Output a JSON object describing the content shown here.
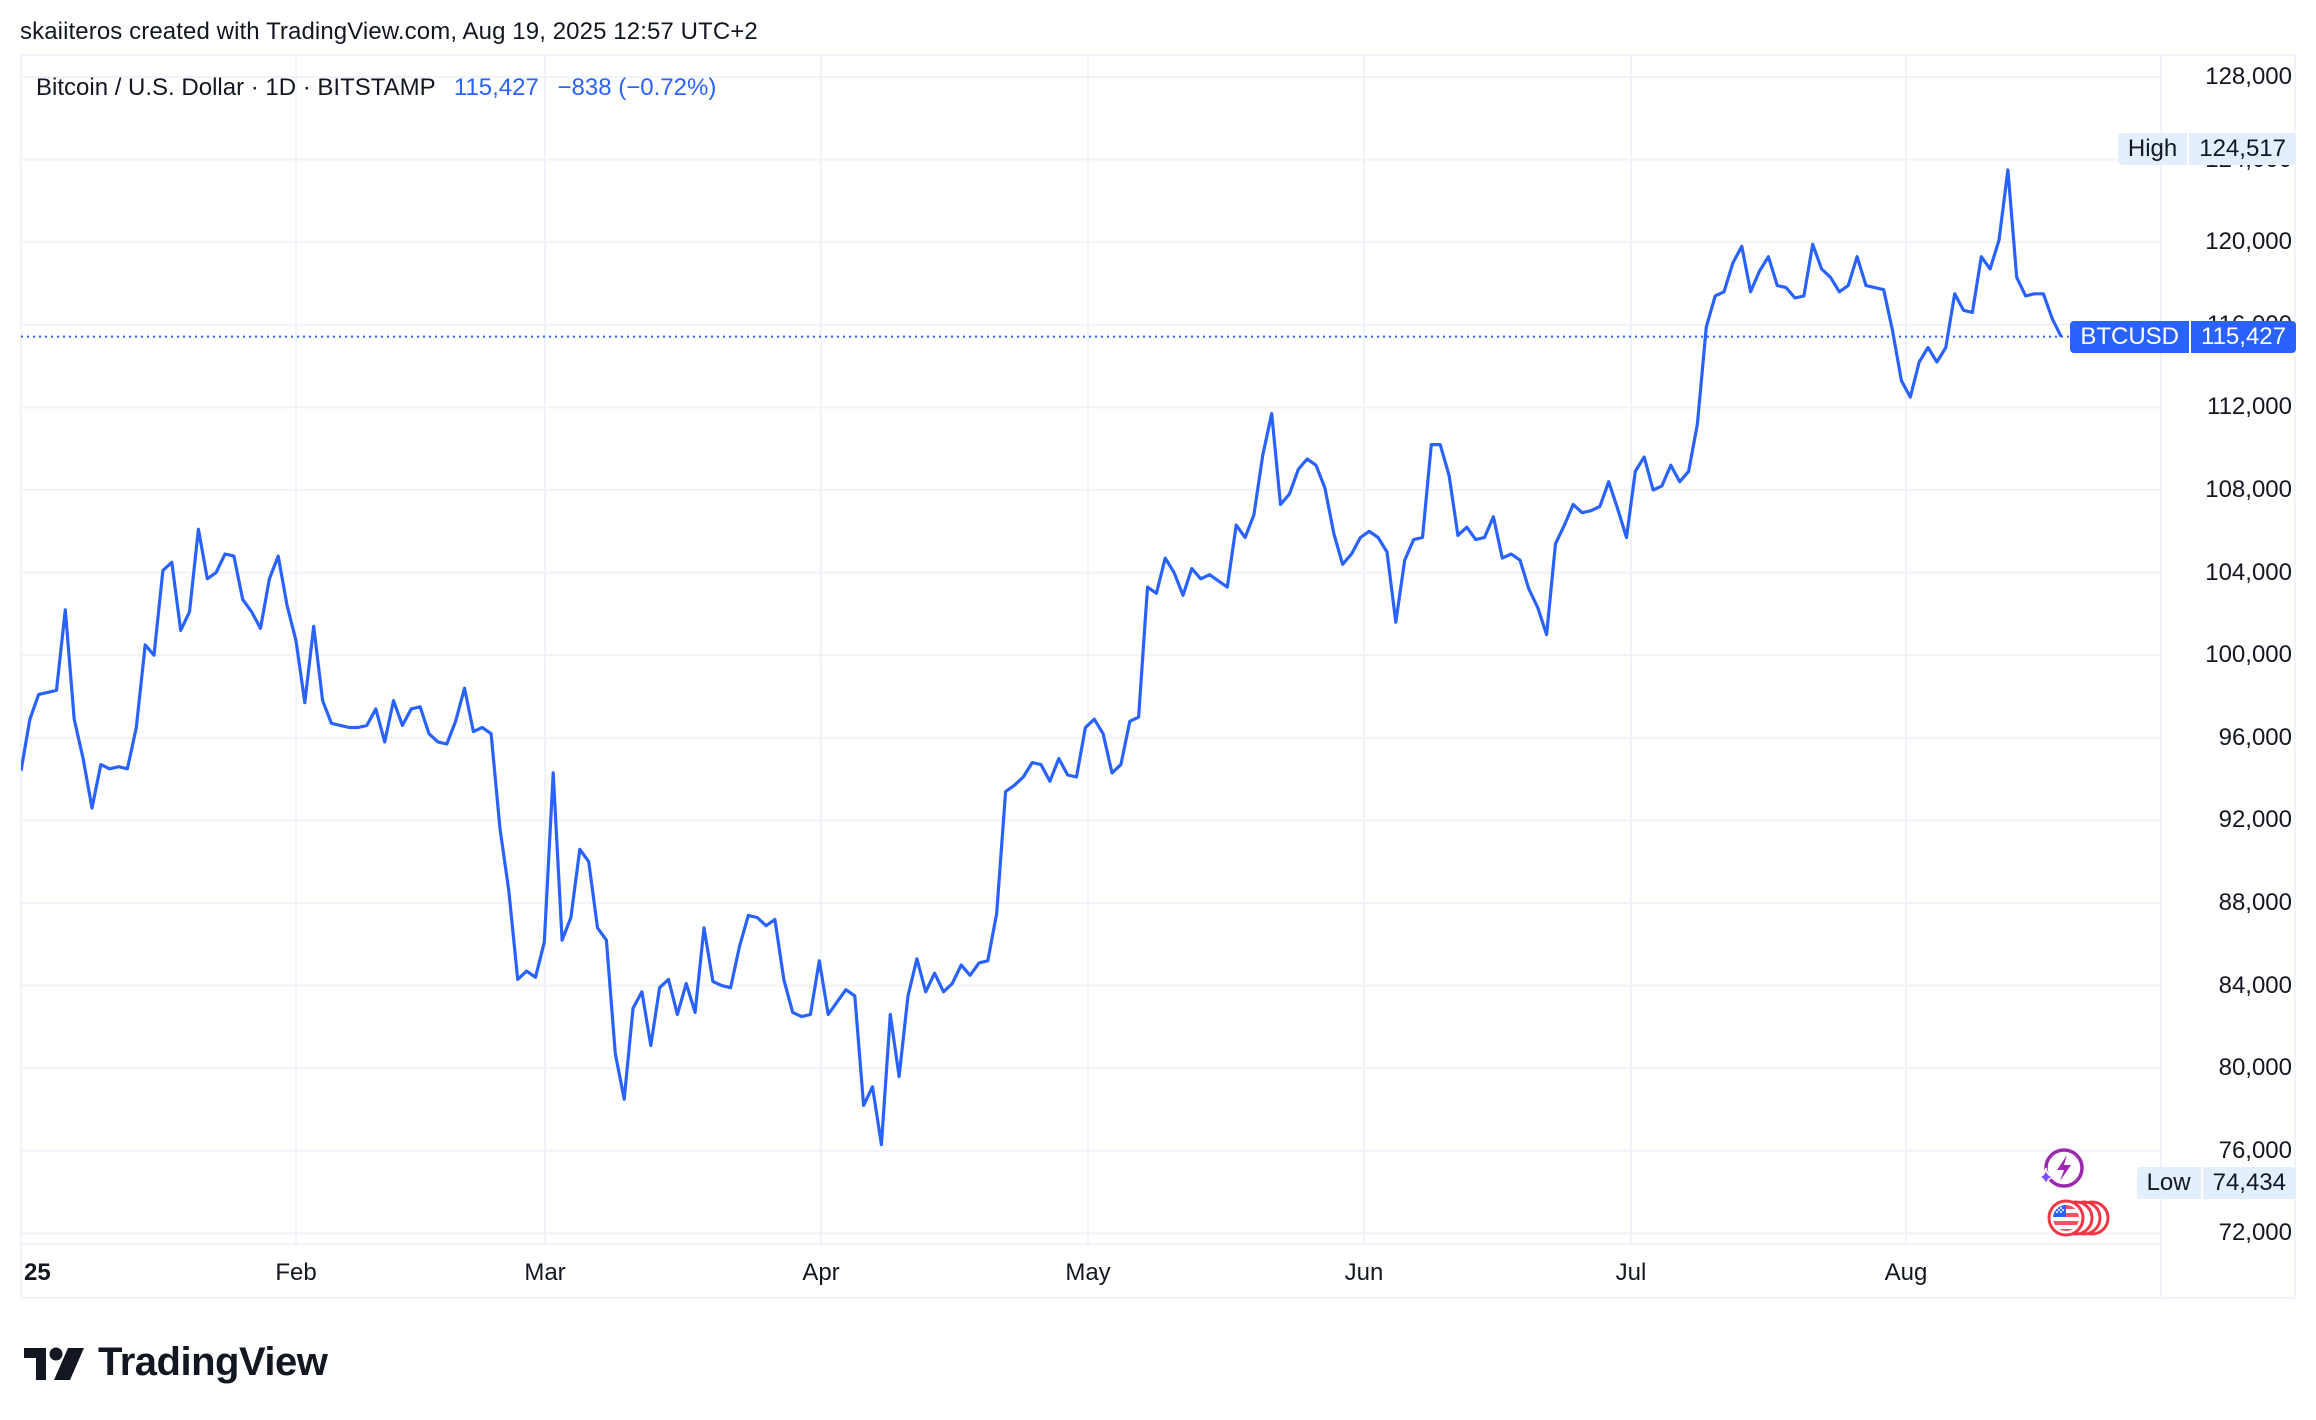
{
  "credit": "skaiiteros created with TradingView.com, Aug 19, 2025 12:57 UTC+2",
  "legend": {
    "symbol": "Bitcoin / U.S. Dollar · 1D · BITSTAMP",
    "price": "115,427",
    "change": "−838 (−0.72%)"
  },
  "tags": {
    "high_label": "High",
    "high_value": "124,517",
    "last_label": "BTCUSD",
    "last_value": "115,427",
    "low_label": "Low",
    "low_value": "74,434"
  },
  "colors": {
    "line": "#2962ff",
    "grid": "#f0f3fa",
    "tag_light": "#e3effd",
    "tag_blue": "#2962ff",
    "text": "#131722"
  },
  "logo": {
    "text": "TradingView"
  },
  "icons": [
    "tradingview-logo-icon",
    "sparkle-lightning-icon",
    "us-flag-coins-icon"
  ],
  "chart_data": {
    "type": "line",
    "title": "Bitcoin / U.S. Dollar · 1D · BITSTAMP",
    "xlabel": "",
    "ylabel": "",
    "ylim": [
      72000,
      128000
    ],
    "grid": true,
    "legend_position": "top-left",
    "y_ticks": [
      "128,000",
      "124,000",
      "120,000",
      "116,000",
      "112,000",
      "108,000",
      "104,000",
      "100,000",
      "96,000",
      "92,000",
      "88,000",
      "84,000",
      "80,000",
      "76,000",
      "72,000"
    ],
    "x_ticks": [
      "25",
      "Feb",
      "Mar",
      "Apr",
      "May",
      "Jun",
      "Jul",
      "Aug"
    ],
    "x_start": "2025-01-01",
    "x_end": "2025-08-19",
    "interval": "1D",
    "series": [
      {
        "name": "BTCUSD",
        "values": [
          94400,
          96900,
          98100,
          98200,
          98300,
          102200,
          96900,
          95000,
          92600,
          94700,
          94500,
          94600,
          94500,
          96500,
          100500,
          100000,
          104100,
          104500,
          101200,
          102100,
          106100,
          103700,
          104000,
          104900,
          104800,
          102700,
          102100,
          101300,
          103700,
          104800,
          102400,
          100700,
          97700,
          101400,
          97800,
          96700,
          96600,
          96500,
          96500,
          96600,
          97400,
          95800,
          97800,
          96600,
          97400,
          97500,
          96200,
          95800,
          95700,
          96800,
          98400,
          96300,
          96500,
          96200,
          91600,
          88600,
          84300,
          84700,
          84400,
          86100,
          94300,
          86200,
          87300,
          90600,
          90000,
          86800,
          86200,
          80700,
          78500,
          82900,
          83700,
          81100,
          83900,
          84300,
          82600,
          84100,
          82700,
          86800,
          84200,
          84000,
          83900,
          85900,
          87400,
          87300,
          86900,
          87200,
          84300,
          82700,
          82500,
          82600,
          85200,
          82600,
          83200,
          83800,
          83500,
          78200,
          79100,
          76300,
          82600,
          79600,
          83500,
          85300,
          83700,
          84600,
          83700,
          84100,
          85000,
          84500,
          85100,
          85200,
          87500,
          93400,
          93700,
          94100,
          94800,
          94700,
          93900,
          95000,
          94200,
          94100,
          96500,
          96900,
          96200,
          94300,
          94700,
          96800,
          97000,
          103300,
          103000,
          104700,
          104000,
          102900,
          104200,
          103700,
          103900,
          103600,
          103300,
          106300,
          105700,
          106800,
          109700,
          111700,
          107300,
          107800,
          109000,
          109500,
          109200,
          108100,
          105900,
          104400,
          104900,
          105700,
          106000,
          105700,
          105000,
          101600,
          104600,
          105600,
          105700,
          110200,
          110200,
          108700,
          105800,
          106200,
          105600,
          105700,
          106700,
          104700,
          104900,
          104600,
          103200,
          102300,
          101000,
          105400,
          106300,
          107300,
          106900,
          107000,
          107200,
          108400,
          107100,
          105700,
          108900,
          109600,
          108000,
          108200,
          109200,
          108400,
          108900,
          111200,
          115900,
          117400,
          117600,
          119000,
          119800,
          117600,
          118600,
          119300,
          117900,
          117800,
          117300,
          117400,
          119900,
          118700,
          118300,
          117600,
          117900,
          119300,
          117900,
          117800,
          117700,
          115700,
          113300,
          112500,
          114200,
          114900,
          114200,
          114900,
          117500,
          116700,
          116600,
          119300,
          118700,
          120100,
          123500,
          118300,
          117400,
          117500,
          117500,
          116300,
          115427
        ]
      }
    ],
    "annotations": [
      {
        "label": "High",
        "value": 124517
      },
      {
        "label": "Low",
        "value": 74434
      },
      {
        "label": "BTCUSD",
        "value": 115427,
        "style": "last-price-dotted-line"
      }
    ]
  }
}
